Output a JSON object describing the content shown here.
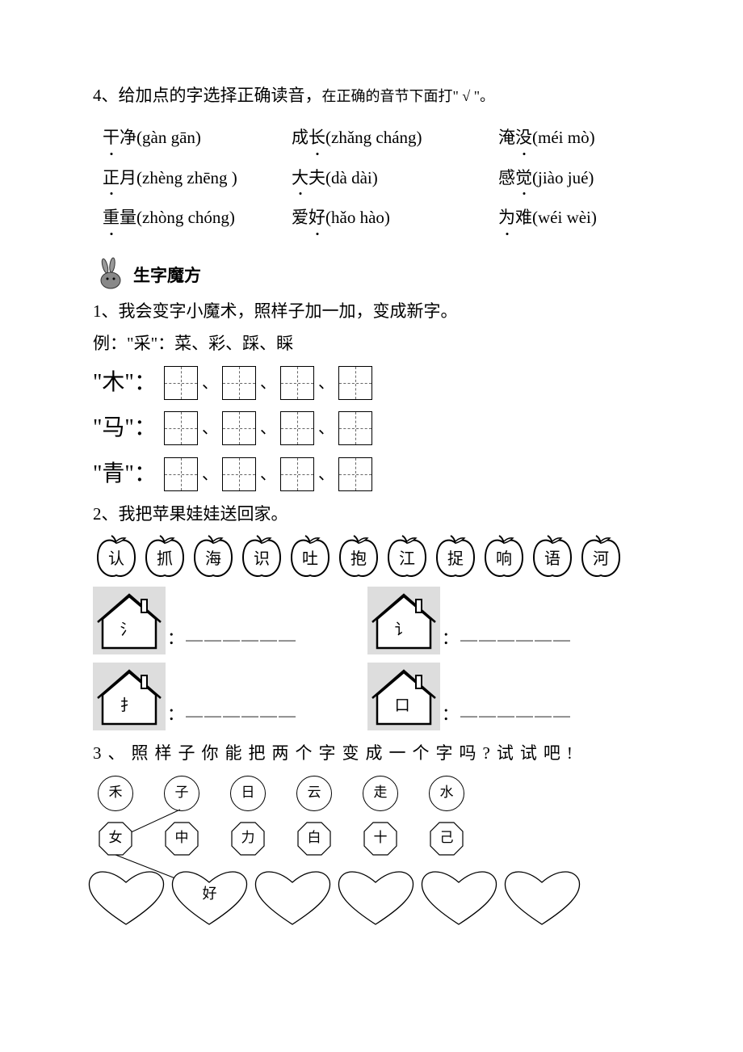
{
  "section4": {
    "title_main": "4、给加点的字选择正确读音，",
    "title_sub": "在正确的音节下面打\" √ \"。",
    "rows": [
      [
        {
          "char": "干",
          "dot": true,
          "rest": "净(gàn  gān)"
        },
        {
          "char": "成",
          "dot": false,
          "rest": "",
          "pre": "成",
          "word": "长",
          "dot2": true,
          "tail": "(zhǎng cháng)"
        },
        {
          "char": "淹",
          "dot": false,
          "pre": "淹",
          "word": "没",
          "dot2": true,
          "tail": "(méi  mò)"
        }
      ],
      [
        {
          "pre": "",
          "word": "正",
          "dot2": true,
          "tail": "月(zhèng zhēng )"
        },
        {
          "pre": "",
          "word": "大",
          "dot2": true,
          "tail": "夫(dà  dài)"
        },
        {
          "pre": "感",
          "word": "觉",
          "dot2": true,
          "tail": "(jiào  jué)"
        }
      ],
      [
        {
          "pre": "重",
          "word": "量",
          "dot2": true,
          "tail": "(zhòng  chóng)",
          "altPre": "",
          "altWord": "重",
          "altTail": "量(zhòng  chóng)"
        },
        {
          "pre": "爱",
          "word": "好",
          "dot2": true,
          "tail": "(hǎo  hào)"
        },
        {
          "pre": "",
          "word": "为",
          "dot2": true,
          "tail": "难(wéi  wèi)"
        }
      ]
    ],
    "items": {
      "r1c1": {
        "w": "干",
        "d": "净",
        "p": "(gàn  gān)"
      },
      "r1c2": {
        "w": "成",
        "d": "长",
        "p": "(zhǎng cháng)"
      },
      "r1c3": {
        "w": "淹",
        "d": "没",
        "p": "(méi  mò)"
      },
      "r2c1": {
        "w": "正",
        "d": "月",
        "p": "(zhèng zhēng )",
        "dotFirst": true
      },
      "r2c2": {
        "w": "大",
        "d": "夫",
        "p": "(dà  dài)",
        "dotFirst": true
      },
      "r2c3": {
        "w": "感",
        "d": "觉",
        "p": "(jiào  jué)"
      },
      "r3c1": {
        "w": "重",
        "d": "量",
        "p": "(zhòng  chóng)",
        "dotFirst": true
      },
      "r3c2": {
        "w": "爱",
        "d": "好",
        "p": "(hǎo  hào)"
      },
      "r3c3": {
        "w": "为",
        "d": "难",
        "p": "(wéi  wèi)",
        "dotFirst": true
      }
    }
  },
  "magicSection": {
    "title": "生字魔方",
    "q1": "1、我会变字小魔术，照样子加一加，变成新字。",
    "example": "例：\"采\"：菜、彩、踩、睬",
    "rows": [
      "\"木\"：",
      "\"马\"：",
      "\"青\"："
    ],
    "q2": "2、我把苹果娃娃送回家。",
    "apples": [
      "认",
      "抓",
      "海",
      "识",
      "吐",
      "抱",
      "江",
      "捉",
      "响",
      "语",
      "河"
    ],
    "houses": [
      "氵",
      "讠",
      "扌",
      "口"
    ],
    "blank": "＿＿＿＿＿＿",
    "colon": "：",
    "q3": "3、照样子你能把两个字变成一个字吗?试试吧!",
    "circles": [
      "禾",
      "子",
      "日",
      "云",
      "走",
      "水"
    ],
    "octagons": [
      "女",
      "中",
      "力",
      "白",
      "十",
      "己"
    ],
    "hearts": [
      "",
      "好",
      "",
      "",
      "",
      ""
    ]
  },
  "colors": {
    "text": "#000000",
    "background": "#ffffff",
    "dash": "#666666"
  }
}
